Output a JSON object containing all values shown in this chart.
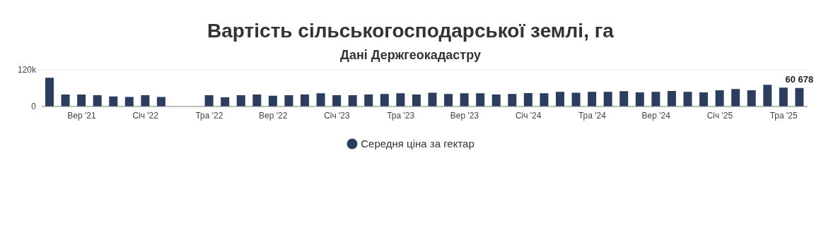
{
  "chart_data": {
    "type": "bar",
    "title": "Вартість сільськогосподарської землі, га",
    "subtitle": "Дані Держгеокадастру",
    "categories": [
      null,
      null,
      "Вер '21",
      null,
      null,
      null,
      "Січ '22",
      null,
      null,
      null,
      "Тра '22",
      null,
      null,
      null,
      "Вер '22",
      null,
      null,
      null,
      "Січ '23",
      null,
      null,
      null,
      "Тра '23",
      null,
      null,
      null,
      "Вер '23",
      null,
      null,
      null,
      "Січ '24",
      null,
      null,
      null,
      "Тра '24",
      null,
      null,
      null,
      "Вер '24",
      null,
      null,
      null,
      "Січ '25",
      null,
      null,
      null,
      "Тра '25",
      null
    ],
    "series": [
      {
        "name": "Середня ціна за гектар",
        "color": "#2c3e5f",
        "values": [
          94000,
          39000,
          39000,
          37000,
          33000,
          31000,
          37000,
          31000,
          null,
          null,
          37000,
          30000,
          37000,
          39000,
          35000,
          37000,
          39000,
          43000,
          37000,
          37000,
          39000,
          41000,
          43000,
          39000,
          45000,
          41000,
          43000,
          43000,
          39000,
          41000,
          44000,
          43000,
          48000,
          45000,
          48000,
          48000,
          50000,
          46000,
          48000,
          51000,
          48000,
          46000,
          53000,
          57000,
          53000,
          71000,
          62000,
          60678
        ],
        "value_labels": [
          null,
          null,
          null,
          null,
          null,
          null,
          null,
          null,
          null,
          null,
          null,
          null,
          null,
          null,
          null,
          null,
          null,
          null,
          null,
          null,
          null,
          null,
          null,
          null,
          null,
          null,
          null,
          null,
          null,
          null,
          null,
          null,
          null,
          null,
          null,
          null,
          null,
          null,
          null,
          null,
          null,
          null,
          null,
          null,
          null,
          null,
          null,
          "60 678"
        ]
      }
    ],
    "ylim": [
      0,
      120000
    ],
    "yticks": [
      0,
      {
        "value": 120000,
        "label": "120k"
      }
    ],
    "grid": "y",
    "legend": "bottom",
    "marker": "circle"
  }
}
